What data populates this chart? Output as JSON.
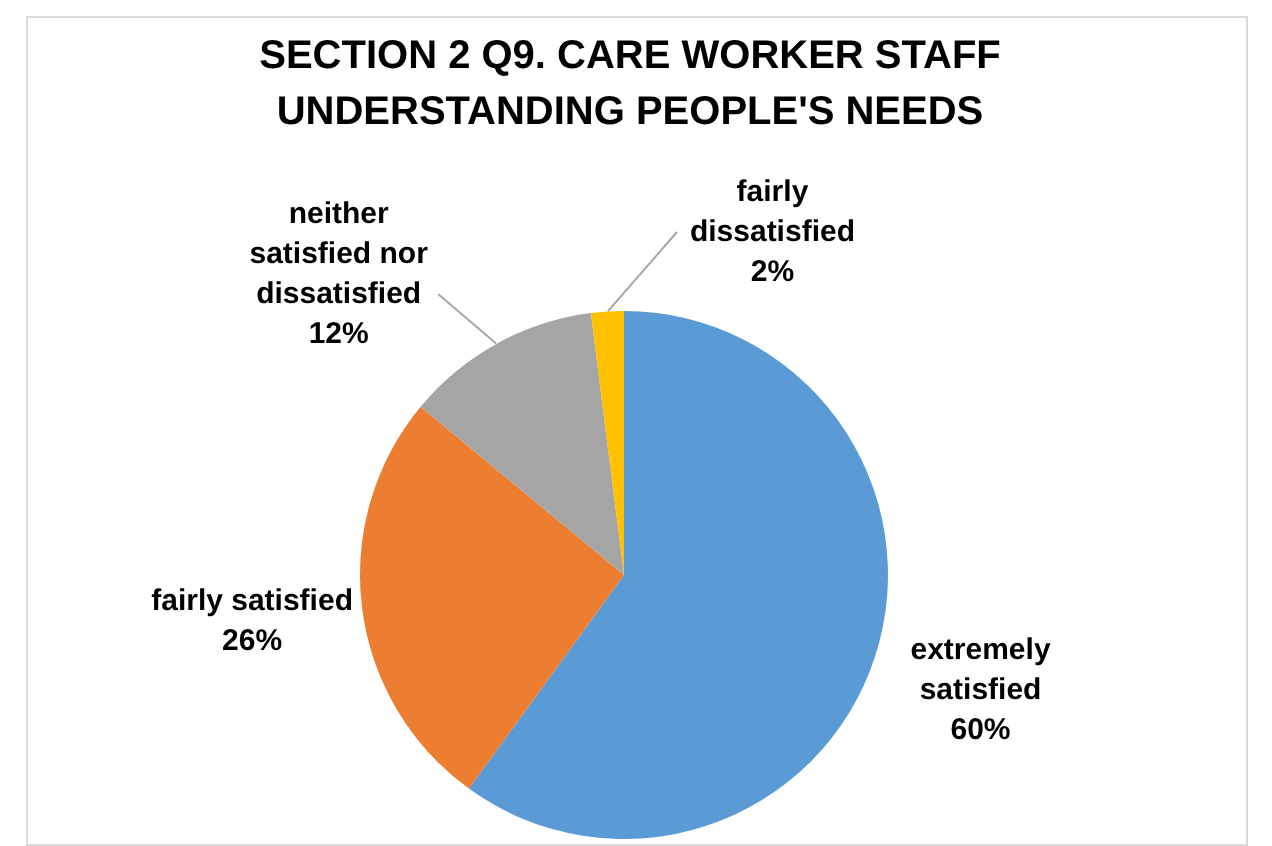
{
  "chart_data": {
    "type": "pie",
    "title": "SECTION 2 Q9. CARE WORKER STAFF UNDERSTANDING PEOPLE'S NEEDS",
    "categories": [
      "extremely satisfied",
      "fairly satisfied",
      "neither satisfied nor dissatisfied",
      "fairly dissatisfied"
    ],
    "values": [
      60,
      26,
      12,
      2
    ],
    "colors": [
      "#5b9bd5",
      "#ed7d31",
      "#a5a5a5",
      "#ffc000"
    ],
    "value_labels": [
      "60%",
      "26%",
      "12%",
      "2%"
    ],
    "legend": false
  }
}
